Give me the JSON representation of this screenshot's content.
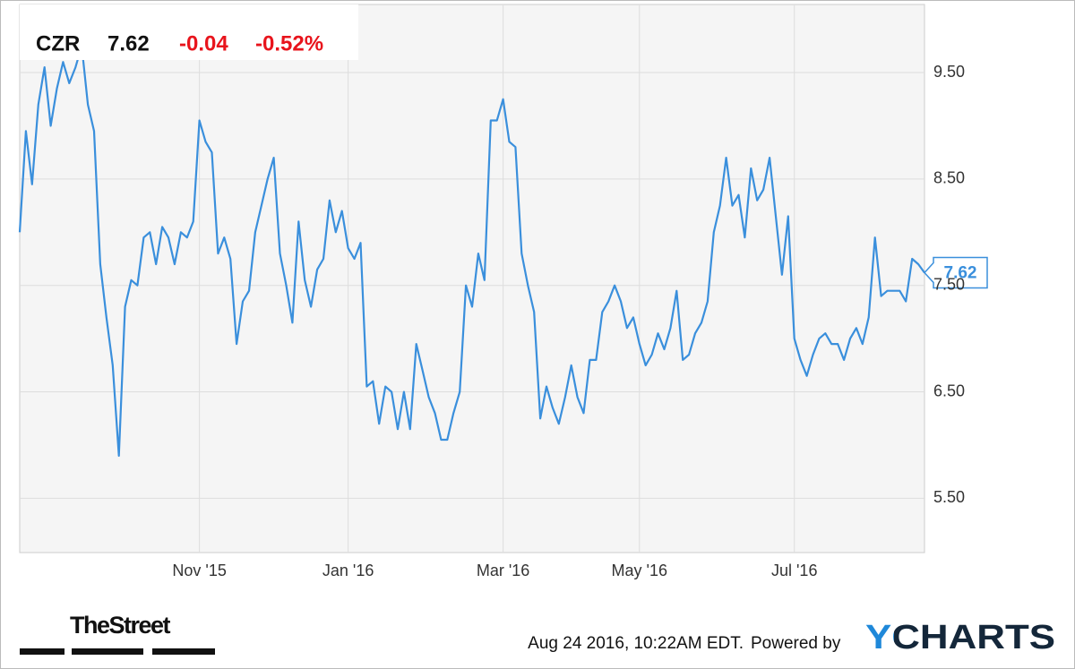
{
  "chart_data": {
    "type": "line",
    "symbol": "CZR",
    "price": 7.62,
    "change": -0.04,
    "change_percent": {
      "value": -0.52,
      "label": "-0.52%"
    },
    "color": "#3a8fdc",
    "up_down_color": "#e8141c",
    "values": [
      8.0,
      8.95,
      8.45,
      9.2,
      9.55,
      9.0,
      9.35,
      9.6,
      9.4,
      9.55,
      9.75,
      9.2,
      8.95,
      7.7,
      7.2,
      6.75,
      5.9,
      7.3,
      7.55,
      7.5,
      7.95,
      8.0,
      7.7,
      8.05,
      7.95,
      7.7,
      8.0,
      7.95,
      8.1,
      9.05,
      8.85,
      8.75,
      7.8,
      7.95,
      7.75,
      6.95,
      7.35,
      7.45,
      8.0,
      8.25,
      8.5,
      8.7,
      7.8,
      7.5,
      7.15,
      8.1,
      7.55,
      7.3,
      7.65,
      7.75,
      8.3,
      8.0,
      8.2,
      7.85,
      7.75,
      7.9,
      6.55,
      6.6,
      6.2,
      6.55,
      6.5,
      6.15,
      6.5,
      6.15,
      6.95,
      6.7,
      6.45,
      6.3,
      6.05,
      6.05,
      6.3,
      6.5,
      7.5,
      7.3,
      7.8,
      7.55,
      9.05,
      9.05,
      9.25,
      8.85,
      8.8,
      7.8,
      7.5,
      7.25,
      6.25,
      6.55,
      6.35,
      6.2,
      6.45,
      6.75,
      6.45,
      6.3,
      6.8,
      6.8,
      7.25,
      7.35,
      7.5,
      7.35,
      7.1,
      7.2,
      6.95,
      6.75,
      6.85,
      7.05,
      6.9,
      7.1,
      7.45,
      6.8,
      6.85,
      7.05,
      7.15,
      7.35,
      8.0,
      8.25,
      8.7,
      8.25,
      8.35,
      7.95,
      8.6,
      8.3,
      8.4,
      8.7,
      8.15,
      7.6,
      8.15,
      7.0,
      6.8,
      6.65,
      6.85,
      7.0,
      7.05,
      6.95,
      6.95,
      6.8,
      7.0,
      7.1,
      6.95,
      7.2,
      7.95,
      7.4,
      7.45,
      7.45,
      7.45,
      7.35,
      7.75,
      7.7,
      7.62
    ],
    "xlim": [
      0,
      146
    ],
    "xticks": [
      {
        "value": 29,
        "label": "Nov '15"
      },
      {
        "value": 53,
        "label": "Jan '16"
      },
      {
        "value": 78,
        "label": "Mar '16"
      },
      {
        "value": 100,
        "label": "May '16"
      },
      {
        "value": 125,
        "label": "Jul '16"
      }
    ],
    "ylim": [
      4.99,
      10.14
    ],
    "yticks": [
      {
        "value": 5.5,
        "label": "5.50"
      },
      {
        "value": 6.5,
        "label": "6.50"
      },
      {
        "value": 7.5,
        "label": "7.50"
      },
      {
        "value": 8.5,
        "label": "8.50"
      },
      {
        "value": 9.5,
        "label": "9.50"
      }
    ],
    "grid": true,
    "timestamp": "Aug 24 2016, 10:22AM EDT.",
    "powered_by": "Powered by",
    "brand": "YCHARTS",
    "publisher": "TheStreet"
  }
}
